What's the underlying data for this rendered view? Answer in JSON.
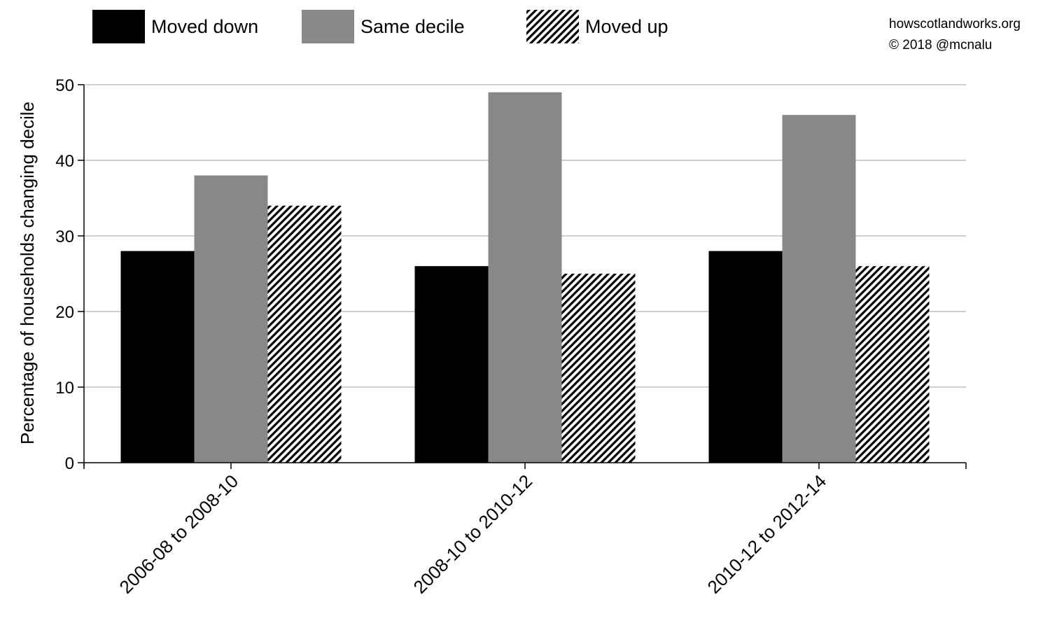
{
  "credit": {
    "site": "howscotlandworks.org",
    "copyright": "© 2018  @mcnalu"
  },
  "chart_data": {
    "type": "bar",
    "title": "",
    "xlabel": "",
    "ylabel": "Percentage of households changing decile",
    "categories": [
      "2006-08 to 2008-10",
      "2008-10 to 2010-12",
      "2010-12 to 2012-14"
    ],
    "series": [
      {
        "name": "Moved down",
        "values": [
          28,
          26,
          28
        ],
        "color": "#000000",
        "pattern": "solid"
      },
      {
        "name": "Same decile",
        "values": [
          38,
          49,
          46
        ],
        "color": "#888888",
        "pattern": "solid"
      },
      {
        "name": "Moved up",
        "values": [
          34,
          25,
          26
        ],
        "color": "#000000",
        "pattern": "diagonal-hatch"
      }
    ],
    "ylim": [
      0,
      50
    ],
    "yticks": [
      0,
      10,
      20,
      30,
      40,
      50
    ],
    "grid": true,
    "legend_position": "top"
  }
}
